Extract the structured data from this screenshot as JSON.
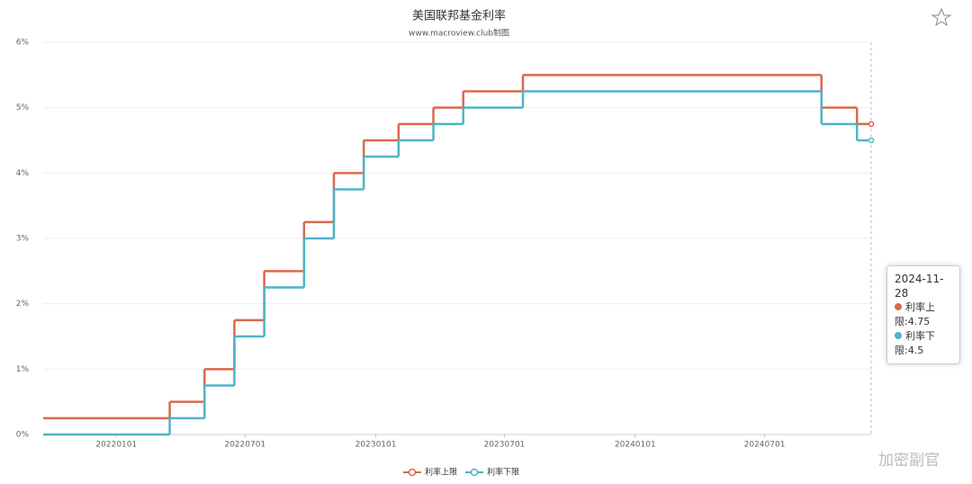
{
  "chart_data": {
    "type": "line",
    "step": "end",
    "title": "美国联邦基金利率",
    "subtitle": "www.macroview.club制图",
    "x": [
      "2021-09-20",
      "2022-03-17",
      "2022-05-05",
      "2022-06-16",
      "2022-07-28",
      "2022-09-22",
      "2022-11-03",
      "2022-12-15",
      "2023-02-02",
      "2023-03-23",
      "2023-05-04",
      "2023-07-27",
      "2024-09-19",
      "2024-11-08",
      "2024-11-28"
    ],
    "series": [
      {
        "name": "利率上限",
        "color": "#d9694f",
        "values": [
          0.25,
          0.5,
          1,
          1.75,
          2.5,
          3.25,
          4,
          4.5,
          4.75,
          5,
          5.25,
          5.5,
          5,
          4.75,
          4.75
        ]
      },
      {
        "name": "利率下限",
        "color": "#4fb3c8",
        "values": [
          0,
          0.25,
          0.75,
          1.5,
          2.25,
          3,
          3.75,
          4.25,
          4.5,
          4.75,
          5,
          5.25,
          4.75,
          4.5,
          4.5
        ]
      }
    ],
    "xlim": [
      "2021-09-20",
      "2024-11-28"
    ],
    "xticks": [
      {
        "value": "2022-01-01",
        "label": "20220101"
      },
      {
        "value": "2022-07-01",
        "label": "20220701"
      },
      {
        "value": "2023-01-01",
        "label": "20230101"
      },
      {
        "value": "2023-07-01",
        "label": "20230701"
      },
      {
        "value": "2024-01-01",
        "label": "20240101"
      },
      {
        "value": "2024-07-01",
        "label": "20240701"
      }
    ],
    "ylim": [
      0,
      6
    ],
    "yticks": [
      {
        "value": 0,
        "label": "0%"
      },
      {
        "value": 1,
        "label": "1%"
      },
      {
        "value": 2,
        "label": "2%"
      },
      {
        "value": 3,
        "label": "3%"
      },
      {
        "value": 4,
        "label": "4%"
      },
      {
        "value": 5,
        "label": "5%"
      },
      {
        "value": 6,
        "label": "6%"
      }
    ],
    "grid": true,
    "legend": "bottom",
    "tooltip": {
      "items": [
        "利率上限:4.75",
        "利率下限:4.5"
      ]
    },
    "watermark": "加密副官"
  }
}
